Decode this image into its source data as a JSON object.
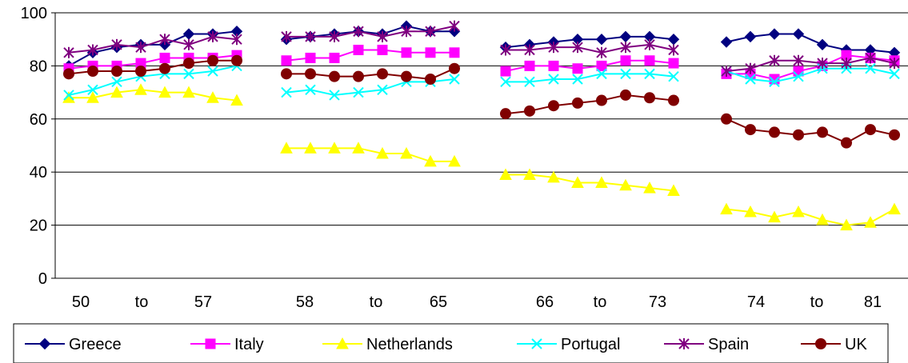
{
  "chart_data": {
    "type": "line",
    "ylim": [
      0,
      100
    ],
    "yticks": [
      "0",
      "20",
      "40",
      "60",
      "80",
      "100"
    ],
    "grid": true,
    "legend_position": "bottom",
    "groups": 4,
    "points_per_group": 8,
    "x_tick_labels": [
      "50",
      "to",
      "57",
      "58",
      "to",
      "65",
      "66",
      "to",
      "73",
      "74",
      "to",
      "81"
    ],
    "series": [
      {
        "name": "Greece",
        "color": "#000080",
        "marker": "diamond",
        "values": [
          [
            80,
            85,
            87,
            88,
            88,
            92,
            92,
            93
          ],
          [
            90,
            91,
            92,
            93,
            92,
            95,
            93,
            93
          ],
          [
            87,
            88,
            89,
            90,
            90,
            91,
            91,
            90
          ],
          [
            89,
            91,
            92,
            92,
            88,
            86,
            86,
            85
          ]
        ]
      },
      {
        "name": "Italy",
        "color": "#FF00FF",
        "marker": "square",
        "values": [
          [
            79,
            80,
            80,
            81,
            83,
            83,
            83,
            84
          ],
          [
            82,
            83,
            83,
            86,
            86,
            85,
            85,
            85
          ],
          [
            78,
            80,
            80,
            79,
            80,
            82,
            82,
            81
          ],
          [
            77,
            77,
            75,
            78,
            80,
            84,
            83,
            82
          ]
        ]
      },
      {
        "name": "Netherlands",
        "color": "#FFFF00",
        "marker": "triangle",
        "values": [
          [
            68,
            68,
            70,
            71,
            70,
            70,
            68,
            67
          ],
          [
            49,
            49,
            49,
            49,
            47,
            47,
            44,
            44
          ],
          [
            39,
            39,
            38,
            36,
            36,
            35,
            34,
            33
          ],
          [
            26,
            25,
            23,
            25,
            22,
            20,
            21,
            26
          ]
        ]
      },
      {
        "name": "Portugal",
        "color": "#00FFFF",
        "marker": "x",
        "values": [
          [
            69,
            71,
            74,
            76,
            77,
            77,
            78,
            80
          ],
          [
            70,
            71,
            69,
            70,
            71,
            74,
            74,
            75
          ],
          [
            74,
            74,
            75,
            75,
            77,
            77,
            77,
            76
          ],
          [
            78,
            75,
            74,
            76,
            79,
            79,
            79,
            77
          ]
        ]
      },
      {
        "name": "Spain",
        "color": "#800080",
        "marker": "star",
        "values": [
          [
            85,
            86,
            88,
            87,
            90,
            88,
            91,
            90
          ],
          [
            91,
            91,
            91,
            93,
            91,
            93,
            93,
            95
          ],
          [
            86,
            86,
            87,
            87,
            85,
            87,
            88,
            86
          ],
          [
            78,
            79,
            82,
            82,
            81,
            81,
            83,
            81
          ]
        ]
      },
      {
        "name": "UK",
        "color": "#800000",
        "marker": "circle",
        "values": [
          [
            77,
            78,
            78,
            78,
            79,
            81,
            82,
            82
          ],
          [
            77,
            77,
            76,
            76,
            77,
            76,
            75,
            79
          ],
          [
            62,
            63,
            65,
            66,
            67,
            69,
            68,
            67
          ],
          [
            60,
            56,
            55,
            54,
            55,
            51,
            56,
            54
          ]
        ]
      }
    ]
  }
}
